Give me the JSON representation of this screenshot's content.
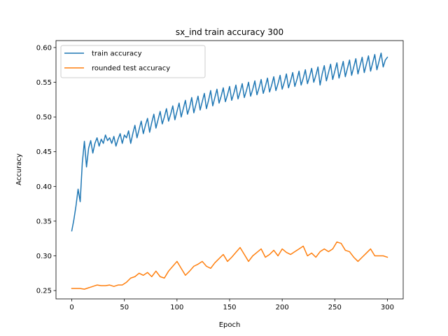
{
  "chart_data": {
    "type": "line",
    "title": "sx_ind train accuracy 300",
    "xlabel": "Epoch",
    "ylabel": "Accuracy",
    "xlim": [
      -15,
      315
    ],
    "ylim": [
      0.238,
      0.61
    ],
    "xticks": [
      0,
      50,
      100,
      150,
      200,
      250,
      300
    ],
    "yticks": [
      0.25,
      0.3,
      0.35,
      0.4,
      0.45,
      0.5,
      0.55,
      0.6
    ],
    "ytick_labels": [
      "0.25",
      "0.30",
      "0.35",
      "0.40",
      "0.45",
      "0.50",
      "0.55",
      "0.60"
    ],
    "legend_position": "upper-left",
    "grid": false,
    "series": [
      {
        "name": "train accuracy",
        "color": "#1f77b4",
        "x": [
          0,
          2,
          4,
          6,
          8,
          10,
          12,
          14,
          16,
          18,
          20,
          22,
          24,
          26,
          28,
          30,
          32,
          34,
          36,
          38,
          40,
          42,
          44,
          46,
          48,
          50,
          52,
          54,
          56,
          58,
          60,
          62,
          64,
          66,
          68,
          70,
          72,
          74,
          76,
          78,
          80,
          82,
          84,
          86,
          88,
          90,
          92,
          94,
          96,
          98,
          100,
          102,
          104,
          106,
          108,
          110,
          112,
          114,
          116,
          118,
          120,
          122,
          124,
          126,
          128,
          130,
          132,
          134,
          136,
          138,
          140,
          142,
          144,
          146,
          148,
          150,
          152,
          154,
          156,
          158,
          160,
          162,
          164,
          166,
          168,
          170,
          172,
          174,
          176,
          178,
          180,
          182,
          184,
          186,
          188,
          190,
          192,
          194,
          196,
          198,
          200,
          202,
          204,
          206,
          208,
          210,
          212,
          214,
          216,
          218,
          220,
          222,
          224,
          226,
          228,
          230,
          232,
          234,
          236,
          238,
          240,
          242,
          244,
          246,
          248,
          250,
          252,
          254,
          256,
          258,
          260,
          262,
          264,
          266,
          268,
          270,
          272,
          274,
          276,
          278,
          280,
          282,
          284,
          286,
          288,
          290,
          292,
          294,
          296,
          298,
          300
        ],
        "y": [
          0.336,
          0.352,
          0.372,
          0.396,
          0.378,
          0.434,
          0.465,
          0.428,
          0.455,
          0.466,
          0.448,
          0.462,
          0.47,
          0.458,
          0.468,
          0.462,
          0.474,
          0.466,
          0.47,
          0.462,
          0.472,
          0.458,
          0.468,
          0.476,
          0.462,
          0.474,
          0.47,
          0.48,
          0.462,
          0.476,
          0.488,
          0.47,
          0.482,
          0.494,
          0.476,
          0.488,
          0.498,
          0.478,
          0.492,
          0.504,
          0.484,
          0.496,
          0.508,
          0.49,
          0.5,
          0.512,
          0.494,
          0.504,
          0.516,
          0.496,
          0.508,
          0.52,
          0.5,
          0.512,
          0.524,
          0.504,
          0.514,
          0.528,
          0.506,
          0.518,
          0.53,
          0.51,
          0.522,
          0.534,
          0.512,
          0.524,
          0.538,
          0.516,
          0.528,
          0.54,
          0.52,
          0.53,
          0.542,
          0.522,
          0.532,
          0.544,
          0.524,
          0.534,
          0.546,
          0.526,
          0.536,
          0.548,
          0.528,
          0.538,
          0.55,
          0.53,
          0.54,
          0.552,
          0.532,
          0.542,
          0.554,
          0.534,
          0.544,
          0.556,
          0.536,
          0.546,
          0.558,
          0.538,
          0.548,
          0.56,
          0.54,
          0.55,
          0.562,
          0.542,
          0.552,
          0.564,
          0.544,
          0.554,
          0.566,
          0.546,
          0.556,
          0.568,
          0.548,
          0.558,
          0.57,
          0.55,
          0.56,
          0.572,
          0.546,
          0.562,
          0.574,
          0.552,
          0.564,
          0.576,
          0.554,
          0.566,
          0.578,
          0.556,
          0.568,
          0.58,
          0.558,
          0.57,
          0.582,
          0.56,
          0.572,
          0.584,
          0.562,
          0.574,
          0.586,
          0.564,
          0.576,
          0.588,
          0.566,
          0.578,
          0.59,
          0.568,
          0.58,
          0.592,
          0.572,
          0.582,
          0.586
        ]
      },
      {
        "name": "rounded test accuracy",
        "color": "#ff7f0e",
        "x": [
          0,
          4,
          8,
          12,
          16,
          20,
          24,
          28,
          32,
          36,
          40,
          44,
          48,
          52,
          56,
          60,
          64,
          68,
          72,
          76,
          80,
          84,
          88,
          92,
          96,
          100,
          104,
          108,
          112,
          116,
          120,
          124,
          128,
          132,
          136,
          140,
          144,
          148,
          152,
          156,
          160,
          164,
          168,
          172,
          176,
          180,
          184,
          188,
          192,
          196,
          200,
          204,
          208,
          212,
          216,
          220,
          224,
          228,
          232,
          236,
          240,
          244,
          248,
          252,
          256,
          260,
          264,
          268,
          272,
          276,
          280,
          284,
          288,
          292,
          296,
          300
        ],
        "y": [
          0.253,
          0.253,
          0.253,
          0.252,
          0.254,
          0.256,
          0.258,
          0.257,
          0.257,
          0.258,
          0.256,
          0.258,
          0.258,
          0.262,
          0.268,
          0.27,
          0.275,
          0.272,
          0.276,
          0.27,
          0.278,
          0.27,
          0.268,
          0.278,
          0.285,
          0.292,
          0.282,
          0.272,
          0.278,
          0.285,
          0.288,
          0.292,
          0.285,
          0.282,
          0.29,
          0.296,
          0.302,
          0.292,
          0.298,
          0.305,
          0.312,
          0.302,
          0.292,
          0.3,
          0.305,
          0.31,
          0.298,
          0.302,
          0.308,
          0.3,
          0.31,
          0.305,
          0.302,
          0.306,
          0.31,
          0.314,
          0.3,
          0.304,
          0.298,
          0.306,
          0.31,
          0.306,
          0.31,
          0.32,
          0.318,
          0.308,
          0.306,
          0.298,
          0.292,
          0.298,
          0.304,
          0.31,
          0.3,
          0.3,
          0.3,
          0.298
        ]
      }
    ]
  }
}
